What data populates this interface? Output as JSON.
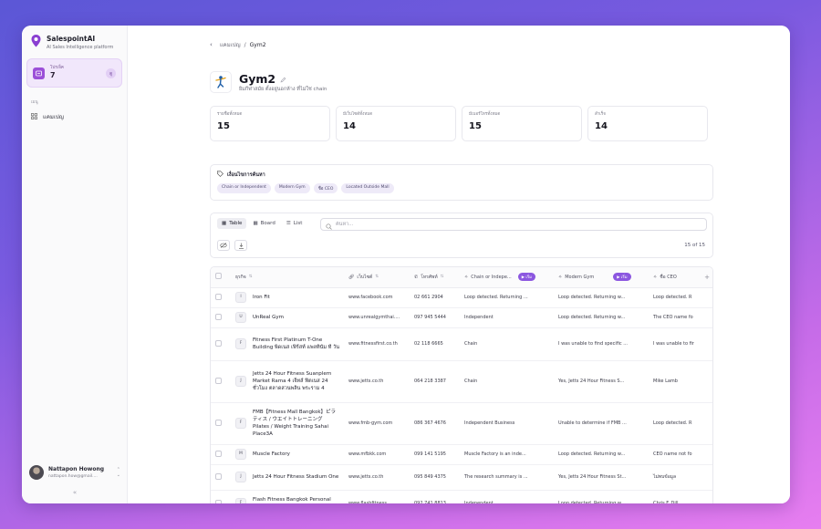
{
  "brand": {
    "name": "SalespointAI",
    "tagline": "AI Sales Intelligence platform"
  },
  "project": {
    "label": "โปรเจ็ค",
    "count": "7",
    "badge": "ดู"
  },
  "menu": {
    "section": "เมนู",
    "items": [
      {
        "label": "แคมเปญ",
        "icon": "grid-icon"
      }
    ]
  },
  "user": {
    "name": "Nattapon Howong",
    "email": "nattapon.how@gmail...."
  },
  "breadcrumb": {
    "parent": "แคมเปญ",
    "separator": "/",
    "current": "Gym2"
  },
  "page": {
    "title": "Gym2",
    "subtitle": "ยิมกีฬาสมัย ตั้งอยู่นอกห้าง ที่ไม่ใช่ chain"
  },
  "stats": [
    {
      "label": "รายชื่อทั้งหมด",
      "value": "15"
    },
    {
      "label": "มีเว็บไซต์ทั้งหมด",
      "value": "14"
    },
    {
      "label": "มีเบอร์โทรทั้งหมด",
      "value": "15"
    },
    {
      "label": "สำเร็จ",
      "value": "14"
    }
  ],
  "filters": {
    "title": "เงื่อนไขการค้นหา",
    "tags": [
      "Chain or Independent",
      "Modern Gym",
      "ชื่อ CEO",
      "Located Outside Mall"
    ]
  },
  "toolbar": {
    "views": [
      "Table",
      "Board",
      "List"
    ],
    "search_placeholder": "ค้นหา...",
    "count": "15 of 15"
  },
  "table": {
    "headers": {
      "company": "ธุรกิจ",
      "website": "เว็บไซต์",
      "phone": "โทรศัพท์",
      "chain": "Chain or Indepe...",
      "gym": "Modern Gym",
      "ceo": "ชื่อ CEO",
      "run": "▶ เริ่ม"
    },
    "rows": [
      {
        "initial": "I",
        "company": "Iron Fit",
        "website": "www.facebook.com",
        "phone": "02 661 2904",
        "chain": "Loop detected. Returning ...",
        "gym": "Loop detected. Returning w...",
        "ceo": "Loop detected. R"
      },
      {
        "initial": "U",
        "company": "UnReal Gym",
        "website": "www.unrealgymthai....",
        "phone": "097 945 5444",
        "chain": "Independent",
        "gym": "Loop detected. Returning w...",
        "ceo": "The CEO name fo"
      },
      {
        "initial": "F",
        "company": "Fitness First Platinum T-One Building พิดเนส เฟิร์สท์ แพลทินัม ที วัน",
        "website": "www.fitnessfirst.co.th",
        "phone": "02 118 6665",
        "chain": "Chain",
        "gym": "I was unable to find specific ...",
        "ceo": "I was unable to fir"
      },
      {
        "initial": "J",
        "company": "Jetts 24 Hour Fitness Suanplern Market Rama 4 เจ็ทส์ ฟิตเนส 24 ชั่วโมง ตลาดสวนพลิน พระราม 4",
        "website": "www.jetts.co.th",
        "phone": "064 218 3387",
        "chain": "Chain",
        "gym": "Yes, Jetts 24 Hour Fitness S...",
        "ceo": "Mike Lamb"
      },
      {
        "initial": "F",
        "company": "FMB【Fitness Mall Bangkok】ピラティス / ウエイトトレーニング Pilates / Weight Training Sahai Place3A",
        "website": "www.fmb-gym.com",
        "phone": "086 367 4676",
        "chain": "Independent Business",
        "gym": "Unable to determine if FMB ...",
        "ceo": "Loop detected. R"
      },
      {
        "initial": "M",
        "company": "Muscle Factory",
        "website": "www.mfbkk.com",
        "phone": "099 141 5195",
        "chain": "Muscle Factory is an inde...",
        "gym": "Loop detected. Returning w...",
        "ceo": "CEO name not fo"
      },
      {
        "initial": "J",
        "company": "Jetts 24 Hour Fitness Stadium One",
        "website": "www.jetts.co.th",
        "phone": "095 849 4375",
        "chain": "The research summary is ...",
        "gym": "Yes, Jetts 24 Hour Fitness St...",
        "ceo": "ไม่พบข้อมูล"
      },
      {
        "initial": "F",
        "company": "Flash Fitness Bangkok Personal Training & Group",
        "website": "www.flashfitness....",
        "phone": "092 741 8813",
        "chain": "Independent",
        "gym": "Loop detected. Returning w...",
        "ceo": "Chris F. Dill"
      }
    ]
  },
  "colors": {
    "accent": "#8c57e0",
    "project_bg": "#f1e7fb"
  }
}
